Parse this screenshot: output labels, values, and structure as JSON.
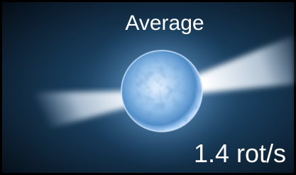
{
  "title": "Average",
  "caption": "1.4 rot/s"
}
